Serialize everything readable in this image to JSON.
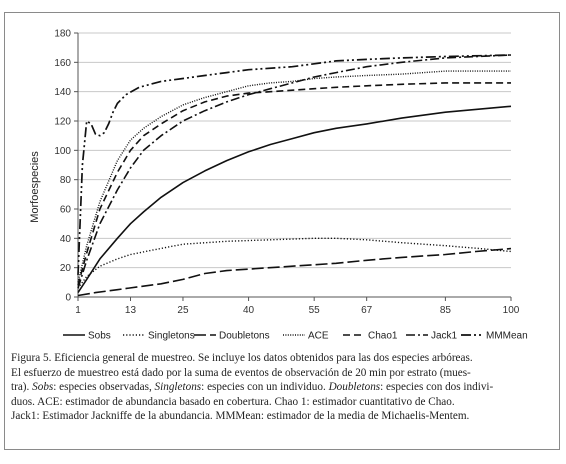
{
  "chart_data": {
    "type": "line",
    "ylabel": "Morfoespecies",
    "xlabel": "",
    "x_ticks": [
      1,
      13,
      25,
      40,
      55,
      67,
      85,
      100
    ],
    "y_ticks": [
      0,
      20,
      40,
      60,
      80,
      100,
      120,
      140,
      160,
      180
    ],
    "xlim": [
      1,
      100
    ],
    "ylim": [
      0,
      180
    ],
    "grid": "horizontal",
    "legend_position": "bottom",
    "series": [
      {
        "name": "Sobs",
        "dash": "solid",
        "width": 1.6,
        "points": [
          [
            1,
            3
          ],
          [
            3,
            12
          ],
          [
            6,
            26
          ],
          [
            10,
            40
          ],
          [
            13,
            50
          ],
          [
            16,
            58
          ],
          [
            20,
            68
          ],
          [
            25,
            78
          ],
          [
            30,
            86
          ],
          [
            35,
            93
          ],
          [
            40,
            99
          ],
          [
            45,
            104
          ],
          [
            50,
            108
          ],
          [
            55,
            112
          ],
          [
            60,
            115
          ],
          [
            67,
            118
          ],
          [
            75,
            122
          ],
          [
            85,
            126
          ],
          [
            100,
            130
          ]
        ]
      },
      {
        "name": "Singletons",
        "dash": "dotted",
        "width": 1.4,
        "points": [
          [
            1,
            6
          ],
          [
            3,
            14
          ],
          [
            6,
            21
          ],
          [
            10,
            26
          ],
          [
            13,
            29
          ],
          [
            18,
            32
          ],
          [
            25,
            36
          ],
          [
            35,
            38
          ],
          [
            45,
            39
          ],
          [
            55,
            40
          ],
          [
            60,
            40
          ],
          [
            67,
            39
          ],
          [
            75,
            37
          ],
          [
            85,
            35
          ],
          [
            93,
            33
          ],
          [
            100,
            31
          ]
        ]
      },
      {
        "name": "Doubletons",
        "dash": "long-dash",
        "width": 1.6,
        "points": [
          [
            1,
            1
          ],
          [
            5,
            3
          ],
          [
            10,
            5
          ],
          [
            15,
            7
          ],
          [
            20,
            9
          ],
          [
            25,
            12
          ],
          [
            30,
            16
          ],
          [
            35,
            18
          ],
          [
            40,
            19
          ],
          [
            50,
            21
          ],
          [
            60,
            23
          ],
          [
            67,
            25
          ],
          [
            75,
            27
          ],
          [
            85,
            29
          ],
          [
            92,
            31
          ],
          [
            100,
            33
          ]
        ]
      },
      {
        "name": "ACE",
        "dash": "dense-dot",
        "width": 1.4,
        "points": [
          [
            1,
            10
          ],
          [
            3,
            35
          ],
          [
            6,
            65
          ],
          [
            10,
            93
          ],
          [
            13,
            107
          ],
          [
            16,
            115
          ],
          [
            20,
            123
          ],
          [
            25,
            131
          ],
          [
            30,
            136
          ],
          [
            35,
            140
          ],
          [
            40,
            144
          ],
          [
            45,
            146
          ],
          [
            50,
            147
          ],
          [
            55,
            149
          ],
          [
            60,
            150
          ],
          [
            67,
            151
          ],
          [
            75,
            152
          ],
          [
            85,
            154
          ],
          [
            100,
            154
          ]
        ]
      },
      {
        "name": "Chao1",
        "dash": "dash",
        "width": 1.6,
        "points": [
          [
            1,
            8
          ],
          [
            3,
            30
          ],
          [
            6,
            60
          ],
          [
            10,
            85
          ],
          [
            13,
            100
          ],
          [
            16,
            110
          ],
          [
            20,
            118
          ],
          [
            25,
            127
          ],
          [
            30,
            133
          ],
          [
            35,
            137
          ],
          [
            40,
            139
          ],
          [
            45,
            140
          ],
          [
            50,
            141
          ],
          [
            55,
            142
          ],
          [
            60,
            143
          ],
          [
            67,
            144
          ],
          [
            75,
            145
          ],
          [
            85,
            146
          ],
          [
            100,
            146
          ]
        ]
      },
      {
        "name": "Jack1",
        "dash": "dash-dot",
        "width": 1.6,
        "points": [
          [
            1,
            6
          ],
          [
            3,
            25
          ],
          [
            6,
            50
          ],
          [
            10,
            73
          ],
          [
            13,
            88
          ],
          [
            16,
            100
          ],
          [
            20,
            110
          ],
          [
            25,
            120
          ],
          [
            30,
            127
          ],
          [
            35,
            133
          ],
          [
            40,
            138
          ],
          [
            45,
            142
          ],
          [
            50,
            146
          ],
          [
            55,
            150
          ],
          [
            60,
            153
          ],
          [
            67,
            157
          ],
          [
            75,
            160
          ],
          [
            85,
            163
          ],
          [
            100,
            165
          ]
        ]
      },
      {
        "name": "MMMean",
        "dash": "dash-dot-dot",
        "width": 1.7,
        "points": [
          [
            1,
            15
          ],
          [
            2,
            90
          ],
          [
            3,
            120
          ],
          [
            4,
            118
          ],
          [
            5,
            111
          ],
          [
            6,
            110
          ],
          [
            7,
            112
          ],
          [
            8,
            118
          ],
          [
            9,
            126
          ],
          [
            10,
            132
          ],
          [
            12,
            138
          ],
          [
            15,
            143
          ],
          [
            20,
            147
          ],
          [
            25,
            149
          ],
          [
            30,
            151
          ],
          [
            35,
            153
          ],
          [
            40,
            155
          ],
          [
            50,
            157
          ],
          [
            55,
            159
          ],
          [
            60,
            161
          ],
          [
            67,
            162
          ],
          [
            75,
            163
          ],
          [
            85,
            164
          ],
          [
            100,
            165
          ]
        ]
      }
    ]
  },
  "caption": {
    "line1": "Figura 5. Eficiencia general de muestreo. Se incluye los datos obtenidos para las dos especies arbóreas.",
    "line2": "El esfuerzo de muestreo está dado por la suma de eventos de observación de 20 min por estrato (mues-",
    "line3_a": "tra). ",
    "line3_b": "Sobs",
    "line3_c": ": especies observadas, ",
    "line3_d": "Singletons",
    "line3_e": ": especies con un individuo. ",
    "line3_f": "Doubletons",
    "line3_g": ": especies con dos indivi-",
    "line4": "duos. ACE: estimador de abundancia basado en cobertura. Chao 1: estimador cuantitativo de Chao.",
    "line5": "Jack1: Estimador Jackniffe de la abundancia. MMMean: estimador de la media de Michaelis-Mentem."
  }
}
